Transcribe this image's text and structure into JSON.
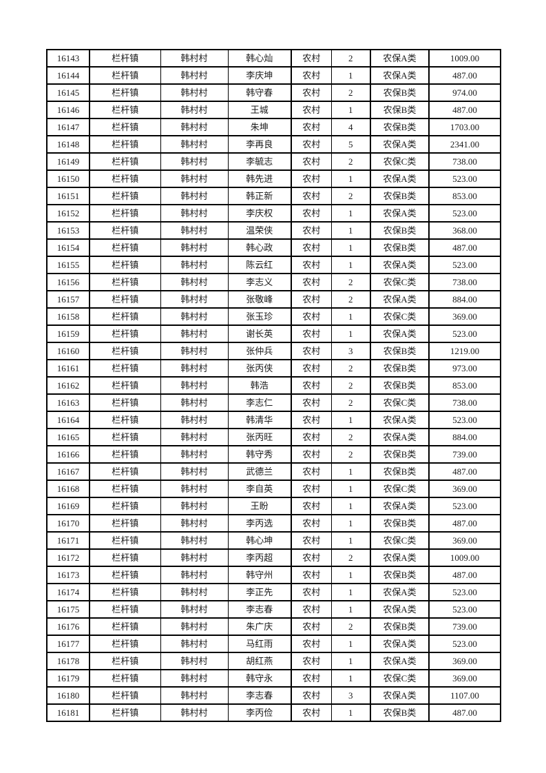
{
  "page": {
    "background_color": "#ffffff",
    "text_color": "#1a1a1a",
    "border_color": "#000000"
  },
  "table": {
    "columns": [
      "record-id",
      "town",
      "village",
      "person-name",
      "residence-type",
      "person-count",
      "insurance-category",
      "amount"
    ],
    "rows": [
      [
        "16143",
        "栏杆镇",
        "韩村村",
        "韩心灿",
        "农村",
        "2",
        "农保A类",
        "1009.00"
      ],
      [
        "16144",
        "栏杆镇",
        "韩村村",
        "李庆坤",
        "农村",
        "1",
        "农保A类",
        "487.00"
      ],
      [
        "16145",
        "栏杆镇",
        "韩村村",
        "韩守春",
        "农村",
        "2",
        "农保B类",
        "974.00"
      ],
      [
        "16146",
        "栏杆镇",
        "韩村村",
        "王城",
        "农村",
        "1",
        "农保B类",
        "487.00"
      ],
      [
        "16147",
        "栏杆镇",
        "韩村村",
        "朱坤",
        "农村",
        "4",
        "农保B类",
        "1703.00"
      ],
      [
        "16148",
        "栏杆镇",
        "韩村村",
        "李再良",
        "农村",
        "5",
        "农保A类",
        "2341.00"
      ],
      [
        "16149",
        "栏杆镇",
        "韩村村",
        "李毓志",
        "农村",
        "2",
        "农保C类",
        "738.00"
      ],
      [
        "16150",
        "栏杆镇",
        "韩村村",
        "韩先进",
        "农村",
        "1",
        "农保A类",
        "523.00"
      ],
      [
        "16151",
        "栏杆镇",
        "韩村村",
        "韩正新",
        "农村",
        "2",
        "农保B类",
        "853.00"
      ],
      [
        "16152",
        "栏杆镇",
        "韩村村",
        "李庆权",
        "农村",
        "1",
        "农保A类",
        "523.00"
      ],
      [
        "16153",
        "栏杆镇",
        "韩村村",
        "温荣侠",
        "农村",
        "1",
        "农保B类",
        "368.00"
      ],
      [
        "16154",
        "栏杆镇",
        "韩村村",
        "韩心政",
        "农村",
        "1",
        "农保B类",
        "487.00"
      ],
      [
        "16155",
        "栏杆镇",
        "韩村村",
        "陈云红",
        "农村",
        "1",
        "农保A类",
        "523.00"
      ],
      [
        "16156",
        "栏杆镇",
        "韩村村",
        "李志义",
        "农村",
        "2",
        "农保C类",
        "738.00"
      ],
      [
        "16157",
        "栏杆镇",
        "韩村村",
        "张敬峰",
        "农村",
        "2",
        "农保A类",
        "884.00"
      ],
      [
        "16158",
        "栏杆镇",
        "韩村村",
        "张玉珍",
        "农村",
        "1",
        "农保C类",
        "369.00"
      ],
      [
        "16159",
        "栏杆镇",
        "韩村村",
        "谢长英",
        "农村",
        "1",
        "农保A类",
        "523.00"
      ],
      [
        "16160",
        "栏杆镇",
        "韩村村",
        "张仲兵",
        "农村",
        "3",
        "农保B类",
        "1219.00"
      ],
      [
        "16161",
        "栏杆镇",
        "韩村村",
        "张丙侠",
        "农村",
        "2",
        "农保B类",
        "973.00"
      ],
      [
        "16162",
        "栏杆镇",
        "韩村村",
        "韩浩",
        "农村",
        "2",
        "农保B类",
        "853.00"
      ],
      [
        "16163",
        "栏杆镇",
        "韩村村",
        "李志仁",
        "农村",
        "2",
        "农保C类",
        "738.00"
      ],
      [
        "16164",
        "栏杆镇",
        "韩村村",
        "韩清华",
        "农村",
        "1",
        "农保A类",
        "523.00"
      ],
      [
        "16165",
        "栏杆镇",
        "韩村村",
        "张丙旺",
        "农村",
        "2",
        "农保A类",
        "884.00"
      ],
      [
        "16166",
        "栏杆镇",
        "韩村村",
        "韩守秀",
        "农村",
        "2",
        "农保B类",
        "739.00"
      ],
      [
        "16167",
        "栏杆镇",
        "韩村村",
        "武德兰",
        "农村",
        "1",
        "农保B类",
        "487.00"
      ],
      [
        "16168",
        "栏杆镇",
        "韩村村",
        "李自英",
        "农村",
        "1",
        "农保C类",
        "369.00"
      ],
      [
        "16169",
        "栏杆镇",
        "韩村村",
        "王盼",
        "农村",
        "1",
        "农保A类",
        "523.00"
      ],
      [
        "16170",
        "栏杆镇",
        "韩村村",
        "李丙选",
        "农村",
        "1",
        "农保B类",
        "487.00"
      ],
      [
        "16171",
        "栏杆镇",
        "韩村村",
        "韩心坤",
        "农村",
        "1",
        "农保C类",
        "369.00"
      ],
      [
        "16172",
        "栏杆镇",
        "韩村村",
        "李丙超",
        "农村",
        "2",
        "农保A类",
        "1009.00"
      ],
      [
        "16173",
        "栏杆镇",
        "韩村村",
        "韩守州",
        "农村",
        "1",
        "农保B类",
        "487.00"
      ],
      [
        "16174",
        "栏杆镇",
        "韩村村",
        "李正先",
        "农村",
        "1",
        "农保A类",
        "523.00"
      ],
      [
        "16175",
        "栏杆镇",
        "韩村村",
        "李志春",
        "农村",
        "1",
        "农保A类",
        "523.00"
      ],
      [
        "16176",
        "栏杆镇",
        "韩村村",
        "朱广庆",
        "农村",
        "2",
        "农保B类",
        "739.00"
      ],
      [
        "16177",
        "栏杆镇",
        "韩村村",
        "马红雨",
        "农村",
        "1",
        "农保A类",
        "523.00"
      ],
      [
        "16178",
        "栏杆镇",
        "韩村村",
        "胡红燕",
        "农村",
        "1",
        "农保A类",
        "369.00"
      ],
      [
        "16179",
        "栏杆镇",
        "韩村村",
        "韩守永",
        "农村",
        "1",
        "农保C类",
        "369.00"
      ],
      [
        "16180",
        "栏杆镇",
        "韩村村",
        "李志春",
        "农村",
        "3",
        "农保A类",
        "1107.00"
      ],
      [
        "16181",
        "栏杆镇",
        "韩村村",
        "李丙俭",
        "农村",
        "1",
        "农保B类",
        "487.00"
      ]
    ]
  }
}
